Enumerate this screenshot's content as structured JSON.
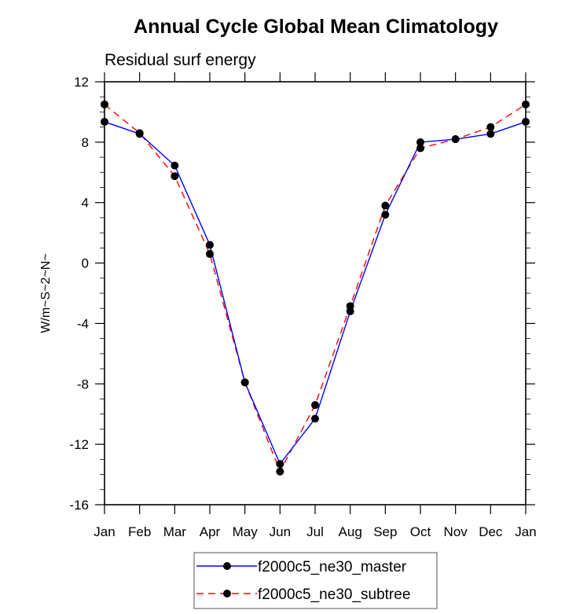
{
  "chart_data": {
    "type": "line",
    "title": "Annual Cycle Global Mean Climatology",
    "subtitle": "Residual surf energy",
    "xlabel": "",
    "ylabel": "W/m~S~2~N~",
    "categories": [
      "Jan",
      "Feb",
      "Mar",
      "Apr",
      "May",
      "Jun",
      "Jul",
      "Aug",
      "Sep",
      "Oct",
      "Nov",
      "Dec",
      "Jan"
    ],
    "ylim": [
      -16,
      12
    ],
    "yticks": [
      -16,
      -12,
      -8,
      -4,
      0,
      4,
      8,
      12
    ],
    "ytick_labels": [
      "-16",
      "-12",
      "-8",
      "-4",
      "0",
      "4",
      "8",
      "12"
    ],
    "yminor_step": 1,
    "grid": false,
    "legend_position": "bottom-center",
    "series": [
      {
        "name": "f2000c5_ne30_master",
        "color": "#0000ff",
        "dash": "solid",
        "marker": "filled-circle",
        "values": [
          9.35,
          8.55,
          6.45,
          1.2,
          -7.9,
          -13.3,
          -10.3,
          -3.2,
          3.2,
          8.0,
          8.2,
          8.55,
          9.35
        ]
      },
      {
        "name": "f2000c5_ne30_subtree",
        "color": "#ff0000",
        "dash": "dashed",
        "marker": "filled-circle",
        "values": [
          10.5,
          8.6,
          5.75,
          0.6,
          -7.9,
          -13.8,
          -9.4,
          -2.85,
          3.8,
          7.6,
          8.2,
          9.0,
          10.5
        ]
      }
    ]
  }
}
